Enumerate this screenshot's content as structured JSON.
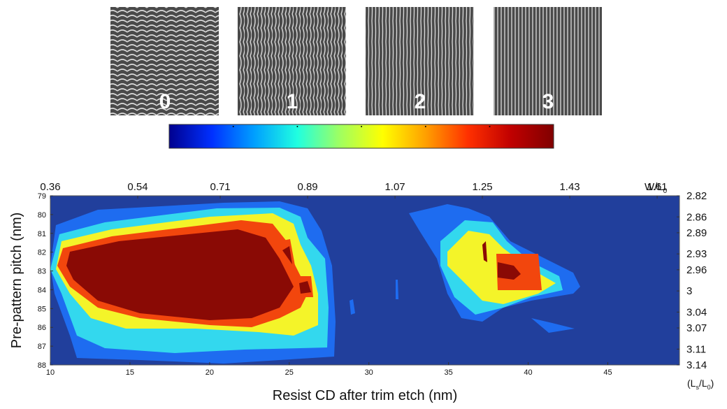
{
  "chart_data": {
    "type": "contour",
    "x_label": "Resist CD after trim etch (nm)",
    "y_label": "Pre-pattern pitch (nm)",
    "xlim": [
      10,
      49.5
    ],
    "xticks": [
      10,
      15,
      20,
      25,
      30,
      35,
      40,
      45
    ],
    "ylim": [
      79,
      88
    ],
    "yticks": [
      79,
      80,
      81,
      82,
      83,
      84,
      85,
      86,
      87,
      88
    ],
    "y_reversed": true,
    "x2lim": [
      0.36,
      1.656
    ],
    "x2ticks": [
      0.36,
      0.54,
      0.71,
      0.89,
      1.07,
      1.25,
      1.43,
      1.61
    ],
    "x2_label": [
      "W/L",
      "0"
    ],
    "y2lim": [
      2.82,
      3.14
    ],
    "y2ticks": [
      2.82,
      2.86,
      2.89,
      2.93,
      2.96,
      3.0,
      3.04,
      3.07,
      3.11,
      3.14
    ],
    "y2_label": [
      "(L",
      "s",
      "/L",
      "0",
      ")"
    ],
    "image_labels": [
      "0",
      "1",
      "2",
      "3"
    ],
    "colormap": [
      "#00008f",
      "#0030ff",
      "#00a0ff",
      "#20ffe0",
      "#a0ff60",
      "#ffff00",
      "#ffa000",
      "#ff3000",
      "#c00000",
      "#800000"
    ],
    "level_colors": [
      "#213f9c",
      "#1e6cf0",
      "#33d8ee",
      "#f4f429",
      "#f2460d",
      "#8a0a05"
    ]
  }
}
